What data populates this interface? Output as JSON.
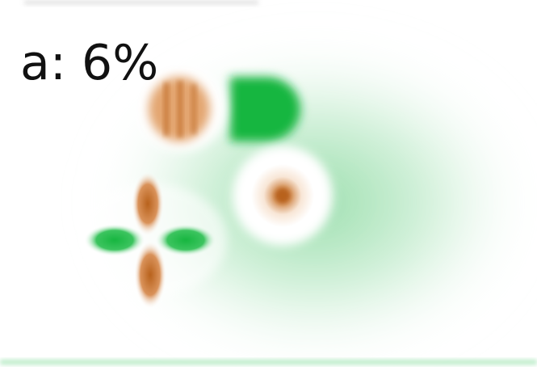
{
  "panel": {
    "label": "a: 6%"
  }
}
